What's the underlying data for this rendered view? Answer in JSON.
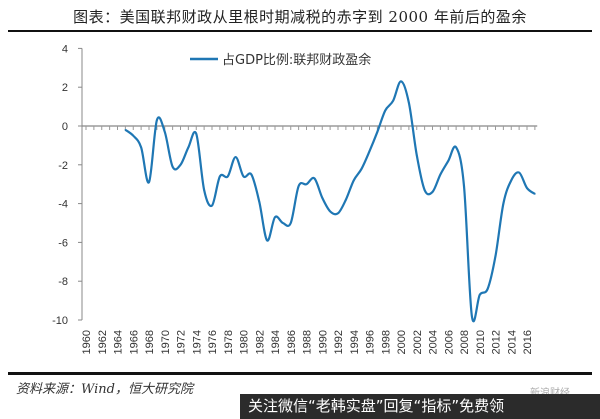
{
  "header": {
    "title": "图表：美国联邦财政从里根时期减税的赤字到 2000 年前后的盈余"
  },
  "footer": {
    "source": "资料来源：Wind，恒大研究院",
    "watermark": "新浪财经",
    "banner": "关注微信“老韩实盘”回复“指标”免费领"
  },
  "chart_data": {
    "type": "line",
    "title": "图表：美国联邦财政从里根时期减税的赤字到 2000 年前后的盈余",
    "xlabel": "",
    "ylabel": "",
    "ylim": [
      -10,
      4
    ],
    "yticks": [
      4,
      2,
      0,
      -2,
      -4,
      -6,
      -8,
      -10
    ],
    "xlim": [
      1960,
      2017.3
    ],
    "xtick_labels": [
      "1960",
      "1962",
      "1964",
      "1966",
      "1968",
      "1970",
      "1972",
      "1974",
      "1976",
      "1978",
      "1980",
      "1982",
      "1984",
      "1986",
      "1988",
      "1990",
      "1992",
      "1994",
      "1996",
      "1998",
      "2000",
      "2002",
      "2004",
      "2006",
      "2008",
      "2010",
      "2012",
      "2014",
      "2016"
    ],
    "legend": {
      "position": "top-center",
      "entries": [
        "占GDP比例:联邦财政盈余"
      ]
    },
    "series": [
      {
        "name": "占GDP比例:联邦财政盈余",
        "color": "#1f77b4",
        "x": [
          1965,
          1966,
          1967,
          1968,
          1969,
          1970,
          1971,
          1972,
          1973,
          1974,
          1975,
          1976,
          1977,
          1978,
          1979,
          1980,
          1981,
          1982,
          1983,
          1984,
          1985,
          1986,
          1987,
          1988,
          1989,
          1990,
          1991,
          1992,
          1993,
          1994,
          1995,
          1996,
          1997,
          1998,
          1999,
          2000,
          2001,
          2002,
          2003,
          2004,
          2005,
          2006,
          2007,
          2008,
          2009,
          2010,
          2011,
          2012,
          2013,
          2014,
          2015,
          2016,
          2017
        ],
        "values": [
          -0.2,
          -0.5,
          -1.1,
          -2.9,
          0.3,
          -0.3,
          -2.1,
          -2.0,
          -1.1,
          -0.4,
          -3.3,
          -4.1,
          -2.6,
          -2.6,
          -1.6,
          -2.6,
          -2.5,
          -3.9,
          -5.9,
          -4.7,
          -5.0,
          -5.0,
          -3.1,
          -3.0,
          -2.7,
          -3.7,
          -4.4,
          -4.5,
          -3.8,
          -2.8,
          -2.2,
          -1.3,
          -0.3,
          0.8,
          1.3,
          2.3,
          1.2,
          -1.5,
          -3.3,
          -3.4,
          -2.5,
          -1.8,
          -1.1,
          -3.1,
          -9.8,
          -8.7,
          -8.4,
          -6.7,
          -4.0,
          -2.8,
          -2.4,
          -3.2,
          -3.5
        ]
      }
    ]
  }
}
